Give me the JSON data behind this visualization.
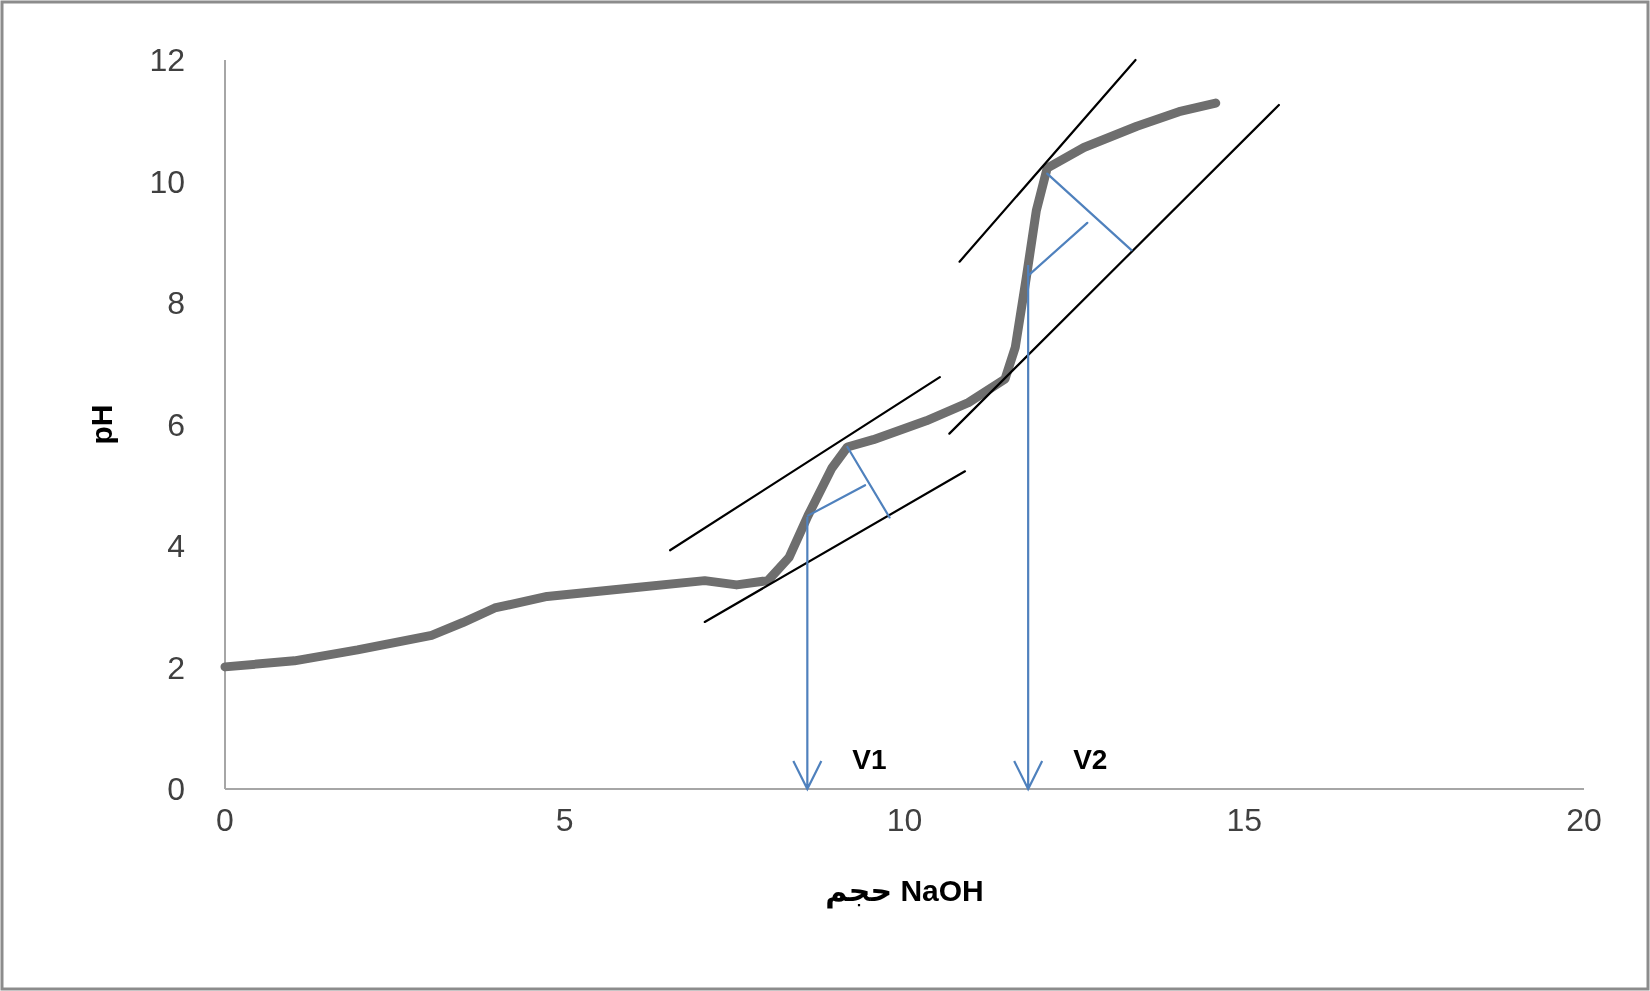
{
  "chart_data": {
    "type": "line",
    "xlabel": "حجم NaOH",
    "ylabel": "pH",
    "xlim": [
      0,
      20
    ],
    "ylim": [
      0,
      12
    ],
    "xticks": [
      0,
      5,
      10,
      15,
      20
    ],
    "yticks": [
      0,
      2,
      4,
      6,
      8,
      10,
      12
    ],
    "grid": false,
    "marker": "none",
    "line_style": "solid",
    "series": [
      {
        "color": "#6e6e6e",
        "x": [
          0,
          1.02,
          1.95,
          3.04,
          3.5,
          3.97,
          4.74,
          5.98,
          7.06,
          7.53,
          7.99,
          8.3,
          8.58,
          8.93,
          9.16,
          9.54,
          10.32,
          10.94,
          11.48,
          11.63,
          11.79,
          11.94,
          12.1,
          12.64,
          13.42,
          14.04,
          14.58
        ],
        "values": [
          2.01,
          2.11,
          2.29,
          2.53,
          2.74,
          2.98,
          3.17,
          3.31,
          3.43,
          3.36,
          3.43,
          3.81,
          4.5,
          5.28,
          5.63,
          5.75,
          6.06,
          6.36,
          6.75,
          7.27,
          8.4,
          9.52,
          10.22,
          10.56,
          10.91,
          11.15,
          11.29
        ]
      },
      {
        "color": "#000000",
        "x": [
          6.55,
          10.52
        ],
        "values": [
          3.93,
          6.78
        ]
      },
      {
        "color": "#000000",
        "x": [
          7.06,
          10.89
        ],
        "values": [
          2.75,
          5.23
        ]
      },
      {
        "color": "#000000",
        "x": [
          10.81,
          13.4
        ],
        "values": [
          8.68,
          12
        ]
      },
      {
        "color": "#000000",
        "x": [
          10.66,
          15.51
        ],
        "values": [
          5.85,
          11.26
        ]
      },
      {
        "color": "#4f81bd",
        "x": [
          9.16,
          9.78
        ],
        "values": [
          5.63,
          4.47
        ]
      },
      {
        "color": "#4f81bd",
        "x": [
          8.58,
          9.42
        ],
        "values": [
          4.5,
          5.0
        ]
      },
      {
        "color": "#4f81bd",
        "x": [
          12.1,
          13.34
        ],
        "values": [
          10.13,
          8.87
        ]
      },
      {
        "color": "#4f81bd",
        "x": [
          11.82,
          12.69
        ],
        "values": [
          8.45,
          9.32
        ]
      }
    ],
    "ref_lines": [
      {
        "axis": "x",
        "value": 8.57,
        "label": "V1",
        "color": "#4f81bd"
      },
      {
        "axis": "x",
        "value": 11.82,
        "label": "V2",
        "color": "#4f81bd"
      }
    ]
  }
}
